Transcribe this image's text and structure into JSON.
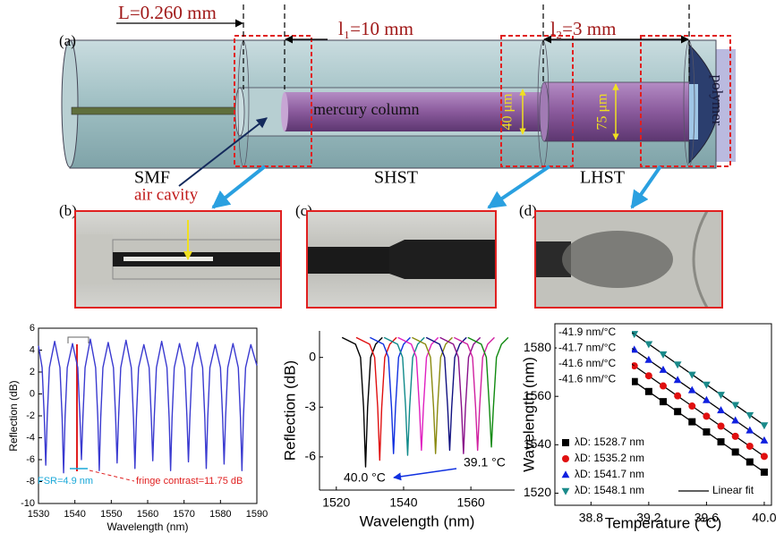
{
  "diagram": {
    "panel_a": "(a)",
    "panel_b": "(b)",
    "panel_c": "(c)",
    "panel_d": "(d)",
    "L_label": "L=0.260 mm",
    "l1_label": "l₁=10 mm",
    "l2_label": "l₂=3 mm",
    "mercury": "mercury column",
    "d40": "40 μm",
    "d75": "75 μm",
    "polymer": "polymer",
    "smf": "SMF",
    "shst": "SHST",
    "lhst": "LHST",
    "air_cavity": "air cavity"
  },
  "chart_data": [
    {
      "type": "line",
      "xlabel": "Wavelength (nm)",
      "ylabel": "Reflection (dB)",
      "x": [
        1530,
        1531.0,
        1531.6,
        1532.0,
        1532.4,
        1533.0,
        1534.45,
        1535.9,
        1536.5,
        1536.9,
        1537.3,
        1537.9,
        1539.35,
        1540.8,
        1541.4,
        1541.8,
        1542.2,
        1542.8,
        1544.25,
        1545.7,
        1546.3,
        1546.7,
        1547.1,
        1547.7,
        1549.15,
        1550.6,
        1551.2,
        1551.6,
        1552.0,
        1552.6,
        1554.05,
        1555.5,
        1556.1,
        1556.5,
        1556.9,
        1557.5,
        1558.95,
        1560.4,
        1561.0,
        1561.4,
        1561.8,
        1562.4,
        1563.85,
        1565.3,
        1565.9,
        1566.3,
        1566.7,
        1567.3,
        1568.75,
        1570.2,
        1570.8,
        1571.2,
        1571.6,
        1572.2,
        1573.65,
        1575.1,
        1575.7,
        1576.1,
        1576.5,
        1577.1,
        1578.55,
        1580.0,
        1580.6,
        1581.0,
        1581.4,
        1582.0,
        1583.45,
        1584.9,
        1585.5,
        1585.9,
        1586.3,
        1586.9,
        1588.35,
        1590
      ],
      "series": [
        {
          "color": "#3a3ad0",
          "values": [
            4.4,
            2.4,
            -2.2,
            -6.5,
            -2.2,
            2.4,
            4.8,
            2.4,
            -2.2,
            -7.2,
            -2.2,
            2.4,
            4.6,
            2.4,
            -2.2,
            -6.0,
            -2.2,
            2.4,
            5.0,
            2.4,
            -2.2,
            -7.0,
            -2.2,
            2.4,
            4.7,
            2.4,
            -2.2,
            -6.3,
            -2.2,
            2.4,
            4.9,
            2.4,
            -2.2,
            -6.8,
            -2.2,
            2.4,
            4.5,
            2.4,
            -2.2,
            -6.1,
            -2.2,
            2.4,
            4.8,
            2.4,
            -2.2,
            -7.0,
            -2.2,
            2.4,
            4.6,
            2.4,
            -2.2,
            -6.2,
            -2.2,
            2.4,
            4.7,
            2.4,
            -2.2,
            -6.8,
            -2.2,
            2.4,
            4.5,
            2.4,
            -2.2,
            -6.4,
            -2.2,
            2.4,
            4.6,
            2.4,
            -2.2,
            -7.0,
            -2.2,
            2.4,
            4.5,
            2.6
          ]
        }
      ],
      "xlim": [
        1530,
        1590
      ],
      "ylim": [
        -10,
        6
      ],
      "xticks": [
        1530,
        1540,
        1550,
        1560,
        1570,
        1580,
        1590
      ],
      "yticks": [
        -10,
        -8,
        -6,
        -4,
        -2,
        0,
        2,
        4,
        6
      ],
      "annotations": [
        "FSR=4.9 nm",
        "fringe contrast=11.75 dB"
      ]
    },
    {
      "type": "line",
      "xlabel": "Wavelength (nm)",
      "ylabel": "Reflection (dB)",
      "series": [
        {
          "color": "#000000",
          "x": [
            1521.7,
            1525.7,
            1527.2,
            1528.1,
            1528.7,
            1529.3,
            1530.2,
            1531.7,
            1533.7
          ],
          "values": [
            1.2,
            0.8,
            0,
            -3,
            -6.6,
            -3,
            0,
            0.8,
            1.2
          ]
        },
        {
          "color": "#e01010",
          "x": [
            1525.9,
            1529.9,
            1531.4,
            1532.3,
            1532.9,
            1533.5,
            1534.4,
            1535.9,
            1537.9
          ],
          "values": [
            1.2,
            0.8,
            0,
            -3,
            -6.2,
            -3,
            0,
            0.8,
            1.2
          ]
        },
        {
          "color": "#1030e0",
          "x": [
            1530.0,
            1534.0,
            1535.5,
            1536.4,
            1537.0,
            1537.6,
            1538.5,
            1540.0,
            1542.0
          ],
          "values": [
            1.2,
            0.8,
            0,
            -3,
            -5.8,
            -3,
            0,
            0.8,
            1.2
          ]
        },
        {
          "color": "#108a8a",
          "x": [
            1534.2,
            1538.2,
            1539.7,
            1540.6,
            1541.2,
            1541.8,
            1542.7,
            1544.2,
            1546.2
          ],
          "values": [
            1.2,
            0.8,
            0,
            -3,
            -5.9,
            -3,
            0,
            0.8,
            1.2
          ]
        },
        {
          "color": "#e020c0",
          "x": [
            1538.3,
            1542.3,
            1543.8,
            1544.7,
            1545.3,
            1545.9,
            1546.8,
            1548.3,
            1550.3
          ],
          "values": [
            1.2,
            0.8,
            0,
            -3,
            -5.6,
            -3,
            0,
            0.8,
            1.2
          ]
        },
        {
          "color": "#8a8a10",
          "x": [
            1542.5,
            1546.5,
            1548.0,
            1548.9,
            1549.5,
            1550.1,
            1551.0,
            1552.5,
            1554.5
          ],
          "values": [
            1.2,
            0.8,
            0,
            -3,
            -5.8,
            -3,
            0,
            0.8,
            1.2
          ]
        },
        {
          "color": "#101080",
          "x": [
            1546.7,
            1550.7,
            1552.2,
            1553.1,
            1553.7,
            1554.3,
            1555.2,
            1556.7,
            1558.7
          ],
          "values": [
            1.2,
            0.8,
            0,
            -3,
            -5.6,
            -3,
            0,
            0.8,
            1.2
          ]
        },
        {
          "color": "#8a108a",
          "x": [
            1550.8,
            1554.8,
            1556.3,
            1557.2,
            1557.8,
            1558.4,
            1559.3,
            1560.8,
            1562.8
          ],
          "values": [
            1.2,
            0.8,
            0,
            -3,
            -5.8,
            -3,
            0,
            0.8,
            1.2
          ]
        },
        {
          "color": "#d020a0",
          "x": [
            1555.0,
            1559.0,
            1560.5,
            1561.4,
            1562.0,
            1562.6,
            1563.5,
            1565.0,
            1567.0
          ],
          "values": [
            1.2,
            0.8,
            0,
            -3,
            -5.6,
            -3,
            0,
            0.8,
            1.2
          ]
        },
        {
          "color": "#108a10",
          "x": [
            1559.1,
            1563.1,
            1564.6,
            1565.5,
            1566.1,
            1566.7,
            1567.6,
            1569.1,
            1571.1
          ],
          "values": [
            1.2,
            0.8,
            0,
            -3,
            -5.4,
            -3,
            0,
            0.8,
            1.2
          ]
        }
      ],
      "xlim": [
        1515,
        1573
      ],
      "ylim": [
        -8,
        1.6
      ],
      "xticks": [
        1520,
        1540,
        1560
      ],
      "yticks": [
        -6,
        -3,
        0
      ],
      "annotations": [
        "40.0 °C",
        "39.1 °C"
      ]
    },
    {
      "type": "scatter",
      "xlabel": "Temperature (°C)",
      "ylabel": "Wavelength (nm)",
      "x": [
        39.1,
        39.2,
        39.3,
        39.4,
        39.5,
        39.6,
        39.7,
        39.8,
        39.9,
        40.0
      ],
      "series": [
        {
          "name": "λD: 1528.7 nm",
          "color": "#000000",
          "marker": "square",
          "values": [
            1566.1,
            1562.0,
            1557.8,
            1553.7,
            1549.5,
            1545.3,
            1541.2,
            1537.0,
            1532.9,
            1528.7
          ]
        },
        {
          "name": "λD: 1535.2 nm",
          "color": "#e01010",
          "marker": "circle",
          "values": [
            1572.6,
            1568.5,
            1564.3,
            1560.2,
            1556.0,
            1551.8,
            1547.7,
            1543.5,
            1539.4,
            1535.2
          ]
        },
        {
          "name": "λD: 1541.7 nm",
          "color": "#1020e0",
          "marker": "triangle",
          "values": [
            1579.2,
            1575.0,
            1570.9,
            1566.7,
            1562.5,
            1558.4,
            1554.2,
            1550.0,
            1545.9,
            1541.7
          ]
        },
        {
          "name": "λD: 1548.1 nm",
          "color": "#1a8a8a",
          "marker": "triangle-down",
          "values": [
            1585.8,
            1581.6,
            1577.4,
            1573.2,
            1569.0,
            1564.9,
            1560.7,
            1556.5,
            1552.3,
            1548.1
          ]
        }
      ],
      "fit_label": "Linear fit",
      "xlim": [
        38.55,
        40.05
      ],
      "ylim": [
        1515,
        1590
      ],
      "xticks": [
        38.8,
        39.2,
        39.6,
        {
          "value": 40,
          "label": "40.0"
        }
      ],
      "yticks": [
        1520,
        1540,
        1560,
        1580
      ],
      "annotations": [
        "-41.9 nm/°C",
        "-41.7 nm/°C",
        "-41.6 nm/°C",
        "-41.6 nm/°C"
      ]
    }
  ]
}
